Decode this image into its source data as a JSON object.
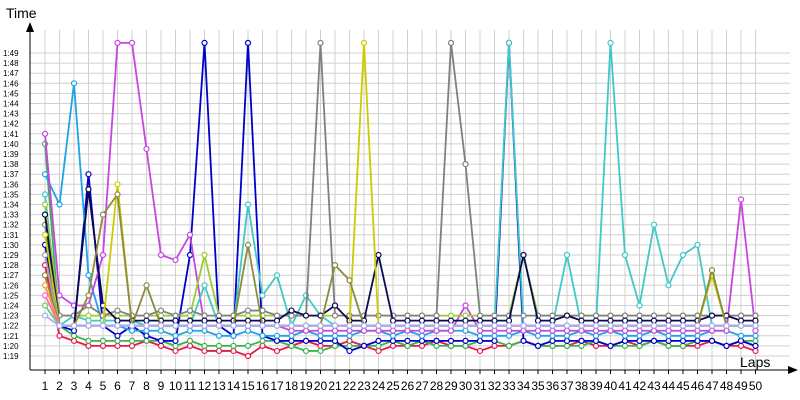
{
  "chart_data": {
    "type": "line",
    "ylabel": "Time",
    "xlabel": "Laps",
    "x": [
      1,
      2,
      3,
      4,
      5,
      6,
      7,
      8,
      9,
      10,
      11,
      12,
      13,
      14,
      15,
      16,
      17,
      18,
      19,
      20,
      21,
      22,
      23,
      24,
      25,
      26,
      27,
      28,
      29,
      30,
      31,
      32,
      33,
      34,
      35,
      36,
      37,
      38,
      39,
      40,
      41,
      42,
      43,
      44,
      45,
      46,
      47,
      48,
      49,
      50
    ],
    "ylim_seconds": [
      78,
      110
    ],
    "yticks": [
      "1:19",
      "1:20",
      "1:21",
      "1:22",
      "1:23",
      "1:24",
      "1:25",
      "1:26",
      "1:27",
      "1:28",
      "1:29",
      "1:30",
      "1:31",
      "1:32",
      "1:33",
      "1:34",
      "1:35",
      "1:36",
      "1:37",
      "1:38",
      "1:39",
      "1:40",
      "1:41",
      "1:42",
      "1:43",
      "1:44",
      "1:45",
      "1:46",
      "1:47",
      "1:48",
      "1:49"
    ],
    "grid": true,
    "series_colors": [
      "#e6194b",
      "#3cb44b",
      "#0000cc",
      "#1fa2e8",
      "#c845e0",
      "#40c8c8",
      "#9acd32",
      "#808080",
      "#0a0a50",
      "#cccc00",
      "#a0a0a0",
      "#8b8b3c",
      "#ff9933",
      "#ff66cc",
      "#66cc66",
      "#aaaaff"
    ],
    "series": [
      {
        "values": [
          88,
          81,
          80.5,
          80,
          80,
          80,
          80,
          80.5,
          80,
          79.5,
          80,
          79.5,
          79.5,
          79.5,
          79,
          80,
          79.5,
          80,
          80.5,
          80,
          80,
          80.5,
          80,
          79.5,
          80,
          80,
          80,
          80.5,
          80,
          80,
          79.5,
          80,
          80,
          80.5,
          80,
          80,
          80,
          80.5,
          80,
          80,
          80.5,
          80,
          80.5,
          80,
          80,
          80,
          80.5,
          80,
          80,
          79.5
        ]
      },
      {
        "values": [
          100,
          82,
          81,
          80.5,
          80.5,
          80.5,
          80.5,
          80.5,
          80.5,
          80,
          80.5,
          80,
          80,
          80,
          80,
          80.5,
          80.5,
          80,
          79.5,
          79.5,
          80,
          80,
          80,
          80,
          80.5,
          80,
          80.5,
          80,
          80,
          80,
          80.5,
          80.5,
          80,
          80.5,
          80,
          80,
          80,
          80,
          80.5,
          80,
          80,
          80,
          80.5,
          80,
          80,
          80.5,
          80.5,
          80,
          80.5,
          80.5
        ]
      },
      {
        "values": [
          90,
          82,
          81.5,
          97,
          82,
          81,
          82,
          81,
          80.5,
          80.5,
          89,
          110,
          82,
          81,
          110,
          81,
          80.5,
          80.5,
          80.5,
          80.5,
          80.5,
          79.5,
          80,
          80.5,
          80.5,
          80.5,
          80.5,
          80.5,
          80.5,
          80.5,
          80.5,
          80.5,
          110,
          80.5,
          80,
          80.5,
          80.5,
          80.5,
          80.5,
          80,
          80.5,
          80.5,
          80.5,
          80.5,
          80.5,
          80.5,
          80.5,
          80,
          80.5,
          80
        ]
      },
      {
        "values": [
          97,
          94,
          106,
          87,
          82,
          82,
          81.5,
          81.5,
          81.5,
          81,
          81.5,
          81.5,
          81,
          81,
          81.5,
          81,
          81,
          81,
          81.5,
          81,
          81,
          81,
          81.5,
          81.5,
          81,
          81.5,
          81,
          81.5,
          81.5,
          81.5,
          81,
          81,
          81,
          81.5,
          81,
          81,
          81,
          81.5,
          81,
          81.5,
          81,
          81,
          81.5,
          81,
          81,
          81,
          81.5,
          81.5,
          81,
          81
        ]
      },
      {
        "values": [
          101,
          85,
          84,
          84,
          89,
          110,
          110,
          99.5,
          89,
          88.5,
          91,
          82,
          82,
          82,
          82,
          82,
          82,
          81.5,
          81.5,
          81.5,
          81.5,
          81.5,
          81.5,
          81.5,
          81.5,
          81.5,
          81.5,
          81.5,
          81.5,
          84,
          81.5,
          81.5,
          81.5,
          81.5,
          81.5,
          81.5,
          81.5,
          81.5,
          81.5,
          81.5,
          81.5,
          81.5,
          81.5,
          81.5,
          81.5,
          81.5,
          81.5,
          81.5,
          94.5,
          81.5
        ]
      },
      {
        "values": [
          95,
          82,
          83,
          82.5,
          82.5,
          82.5,
          82.5,
          82,
          82,
          82,
          82,
          86,
          82,
          82,
          94,
          85,
          87,
          82,
          85,
          83,
          82,
          82,
          82,
          82,
          82,
          82,
          82,
          82,
          82,
          82,
          82,
          82,
          110,
          82,
          82,
          82,
          89,
          82,
          82,
          110,
          89,
          84,
          92,
          86,
          89,
          90,
          82,
          82,
          82,
          82
        ]
      },
      {
        "values": [
          94,
          83,
          83,
          83,
          83,
          83,
          83,
          83,
          83,
          83,
          83,
          89,
          83,
          83,
          83,
          83,
          83,
          83,
          83,
          83,
          83,
          83,
          83,
          83,
          83,
          83,
          83,
          83,
          83,
          83,
          83,
          83,
          83,
          89,
          83,
          83,
          83,
          83,
          83,
          83,
          83,
          83,
          83,
          83,
          83,
          83,
          83,
          83,
          83,
          83
        ]
      },
      {
        "values": [
          92,
          83,
          83,
          84,
          83,
          83.5,
          83,
          83,
          83.5,
          83,
          83.5,
          83,
          83,
          83,
          83.5,
          83.5,
          83,
          83,
          83,
          110,
          83,
          83,
          83,
          83,
          83,
          83,
          83,
          83,
          110,
          98,
          83,
          83,
          83,
          83,
          83,
          83,
          83,
          83,
          83,
          83,
          83,
          83,
          83,
          83,
          83,
          83,
          83,
          83,
          83,
          83
        ]
      },
      {
        "values": [
          93,
          82,
          82,
          95.5,
          84,
          82.5,
          82.5,
          82.5,
          82.5,
          82.5,
          82.5,
          82.5,
          82.5,
          82.5,
          82.5,
          82.5,
          82.5,
          83.5,
          83,
          83,
          84,
          82.5,
          82.5,
          89,
          82.5,
          82.5,
          82.5,
          82.5,
          82.5,
          82.5,
          82.5,
          82.5,
          82.5,
          89,
          82.5,
          82.5,
          83,
          82.5,
          82.5,
          82.5,
          82.5,
          82.5,
          82.5,
          82.5,
          82.5,
          82.5,
          83,
          83,
          82.5,
          82.5
        ]
      },
      {
        "values": [
          91,
          82,
          82,
          82,
          82,
          96,
          82,
          82,
          82,
          82,
          82,
          82,
          82,
          82,
          82,
          82,
          82,
          82,
          82,
          82,
          82,
          82,
          110,
          82,
          82,
          82,
          82,
          82,
          82,
          82,
          82,
          82,
          82,
          82,
          82,
          82,
          82,
          82,
          82,
          82,
          82,
          82,
          82,
          82,
          82,
          82,
          87,
          82,
          82,
          82
        ]
      },
      {
        "values": [
          89,
          82,
          82,
          82,
          82,
          82,
          82,
          82,
          82,
          82,
          82,
          82,
          82,
          82,
          82,
          82,
          82,
          82,
          82,
          82,
          82,
          82,
          82,
          82,
          82,
          82,
          82,
          82,
          82,
          82,
          82,
          82,
          82,
          82,
          82,
          82,
          82,
          82,
          82,
          82,
          82,
          82,
          82,
          82,
          82,
          82,
          82,
          82,
          82,
          82
        ]
      },
      {
        "values": [
          87,
          82,
          82,
          85,
          93,
          95,
          82,
          86,
          82,
          82,
          82,
          82,
          82,
          82,
          90,
          82,
          82,
          82,
          82,
          82,
          88,
          86.5,
          82,
          82,
          82,
          82,
          82,
          82,
          82,
          82,
          82,
          82,
          82,
          82,
          82,
          82,
          82,
          82,
          82,
          82,
          82,
          82,
          82,
          82,
          82,
          82,
          87.5,
          82,
          82,
          82
        ]
      },
      {
        "values": [
          86,
          82,
          82,
          82,
          82,
          82,
          82,
          82,
          82,
          82,
          82,
          82,
          82,
          82,
          82,
          82,
          82,
          82,
          82,
          82,
          82,
          82,
          82,
          82,
          82,
          82,
          82,
          82,
          82,
          82,
          82,
          82,
          82,
          82,
          82,
          82,
          82,
          82,
          82,
          82,
          82,
          82,
          82,
          82,
          82,
          82,
          82,
          82,
          82,
          82
        ]
      },
      {
        "values": [
          85,
          82,
          82,
          82,
          82,
          82,
          82,
          82,
          82,
          82,
          82,
          82,
          82,
          82,
          82,
          82,
          82,
          82,
          82,
          82,
          82,
          82,
          82,
          82,
          82,
          82,
          82,
          82,
          82,
          82,
          82,
          82,
          82,
          82,
          82,
          82,
          82,
          82,
          82,
          82,
          82,
          82,
          82,
          82,
          82,
          82,
          82,
          82,
          82,
          82
        ]
      },
      {
        "values": [
          84,
          82,
          82,
          82,
          82,
          82,
          82,
          82,
          82,
          82,
          82,
          82,
          82,
          82,
          82,
          82,
          82,
          82,
          82,
          82,
          82,
          82,
          82,
          82,
          82,
          82,
          82,
          82,
          82,
          82,
          82,
          82,
          82,
          82,
          82,
          82,
          82,
          82,
          82,
          82,
          82,
          82,
          82,
          82,
          82,
          82,
          82,
          82,
          82,
          82
        ]
      },
      {
        "values": [
          83,
          82,
          82,
          82,
          82,
          82,
          82,
          82,
          82,
          82,
          82,
          82,
          82,
          82,
          82,
          82,
          82,
          82,
          82,
          82,
          82,
          82,
          82,
          82,
          82,
          82,
          82,
          82,
          82,
          82,
          82,
          82,
          82,
          82,
          82,
          82,
          82,
          82,
          82,
          82,
          82,
          82,
          82,
          82,
          82,
          82,
          82,
          82,
          82,
          82
        ]
      }
    ]
  }
}
